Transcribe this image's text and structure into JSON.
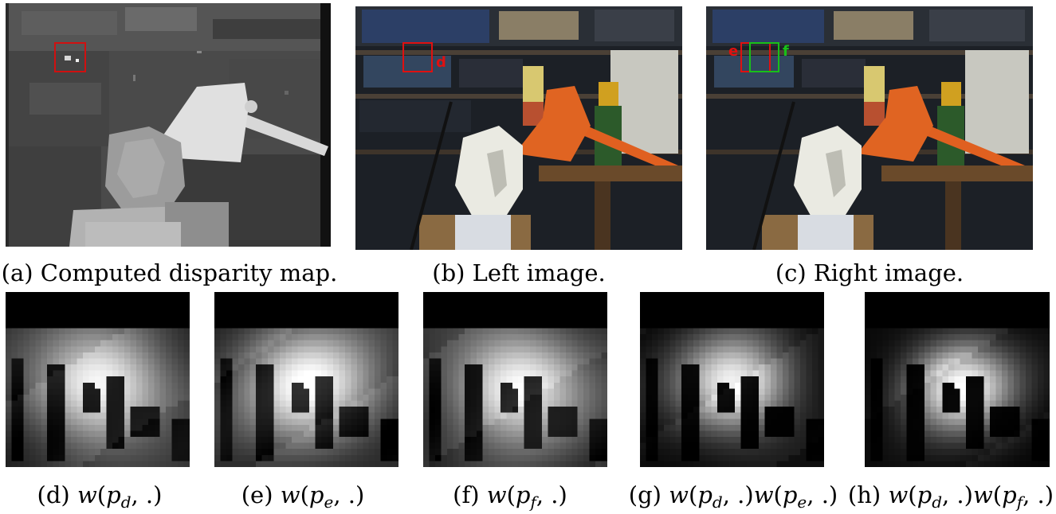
{
  "top_row": {
    "a": {
      "caption": "(a) Computed disparity map.",
      "box_color": "#d01010"
    },
    "b": {
      "caption": "(b) Left image.",
      "marker_label": "d",
      "marker_color": "#e01010"
    },
    "c": {
      "caption": "(c) Right image.",
      "marker_left_label": "e",
      "marker_right_label": "f",
      "marker_left_color": "#e01010",
      "marker_right_color": "#18c018"
    }
  },
  "bottom_row": {
    "d": {
      "tag": "(d)",
      "fn": "w",
      "sub1": "d",
      "sub2": ""
    },
    "e": {
      "tag": "(e)",
      "fn": "w",
      "sub1": "e",
      "sub2": ""
    },
    "f": {
      "tag": "(f)",
      "fn": "w",
      "sub1": "f",
      "sub2": ""
    },
    "g": {
      "tag": "(g)",
      "fn": "w",
      "sub1": "d",
      "sub2": "e"
    },
    "h": {
      "tag": "(h)",
      "fn": "w",
      "sub1": "d",
      "sub2": "f"
    }
  }
}
